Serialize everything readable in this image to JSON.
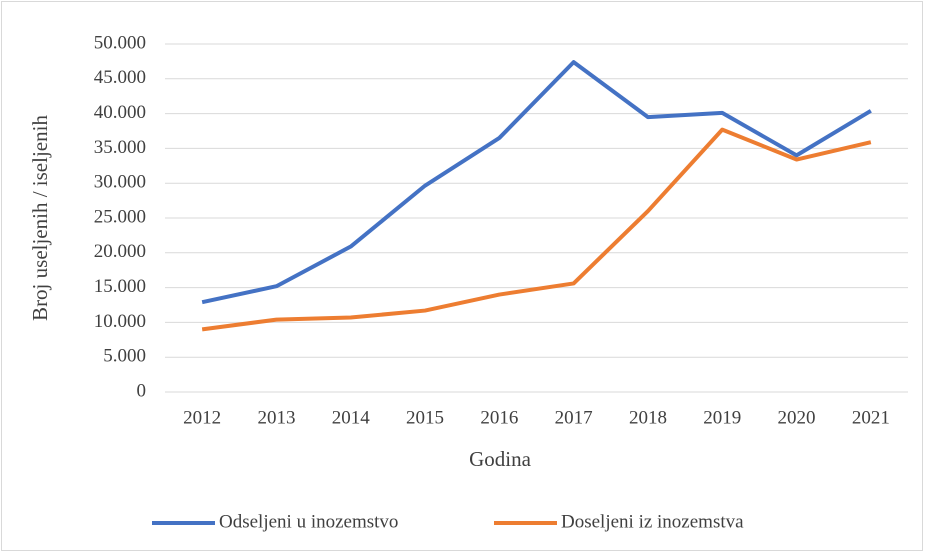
{
  "chart_data": {
    "type": "line",
    "x_label": "Godina",
    "y_label": "Broj useljenih / iseljenih",
    "categories": [
      "2012",
      "2013",
      "2014",
      "2015",
      "2016",
      "2017",
      "2018",
      "2019",
      "2020",
      "2021"
    ],
    "series": [
      {
        "name": "Odseljeni u inozemstvo",
        "color": "#4472c4",
        "values": [
          12900,
          15200,
          20900,
          29650,
          36500,
          47400,
          39500,
          40100,
          34000,
          40400
        ]
      },
      {
        "name": "Doseljeni iz inozemstva",
        "color": "#ed7d31",
        "values": [
          9000,
          10400,
          10700,
          11700,
          14000,
          15600,
          26000,
          37700,
          33400,
          35900
        ]
      }
    ],
    "ylim": [
      0,
      50000
    ],
    "yticks": [
      0,
      {
        "value": 5000,
        "label": "5.000"
      },
      {
        "value": 10000,
        "label": "10.000"
      },
      {
        "value": 15000,
        "label": "15.000"
      },
      {
        "value": 20000,
        "label": "20.000"
      },
      {
        "value": 25000,
        "label": "25.000"
      },
      {
        "value": 30000,
        "label": "30.000"
      },
      {
        "value": 35000,
        "label": "35.000"
      },
      {
        "value": 40000,
        "label": "40.000"
      },
      {
        "value": 45000,
        "label": "45.000"
      },
      {
        "value": 50000,
        "label": "50.000"
      }
    ],
    "grid": true,
    "legend": "bottom"
  }
}
